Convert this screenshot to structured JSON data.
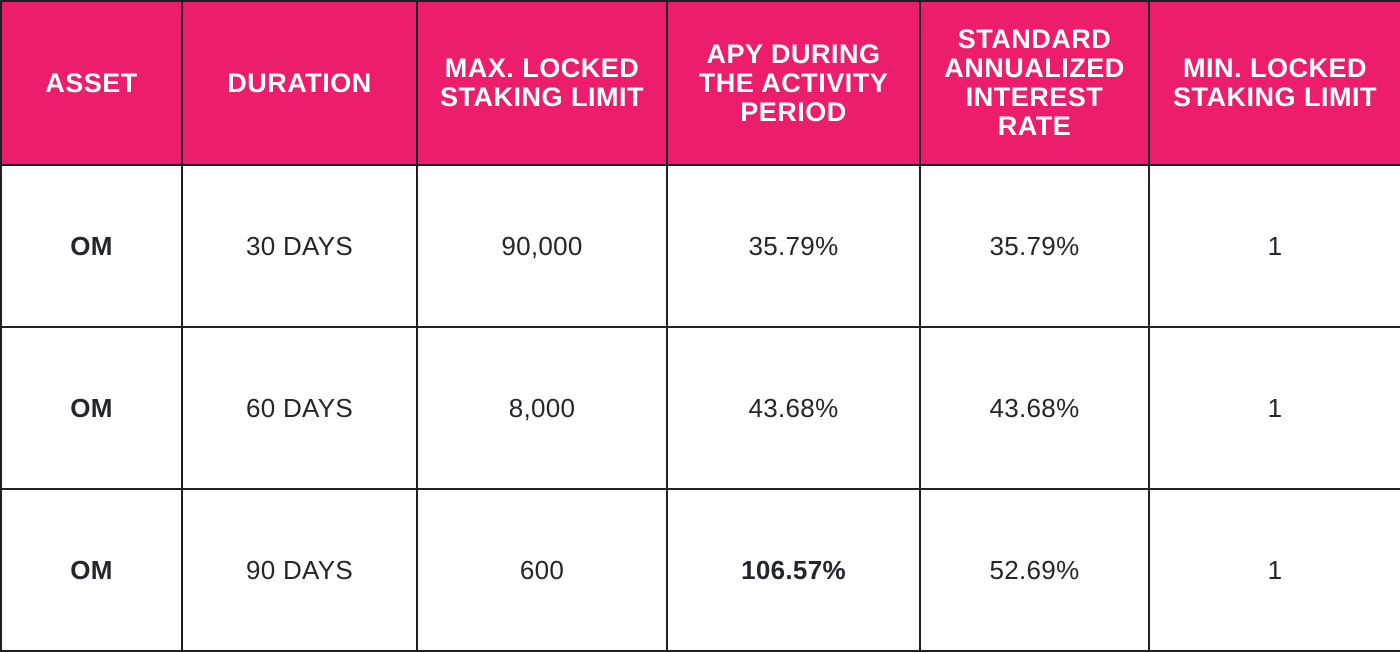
{
  "table": {
    "headers": [
      "ASSET",
      "DURATION",
      "MAX. LOCKED STAKING LIMIT",
      "APY DURING THE ACTIVITY PERIOD",
      "STANDARD ANNUALIZED INTEREST RATE",
      "MIN. LOCKED STAKING LIMIT"
    ],
    "rows": [
      {
        "asset": "OM",
        "duration": "30 DAYS",
        "max_limit": "90,000",
        "apy": "35.79%",
        "standard_rate": "35.79%",
        "min_limit": "1"
      },
      {
        "asset": "OM",
        "duration": "60 DAYS",
        "max_limit": "8,000",
        "apy": "43.68%",
        "standard_rate": "43.68%",
        "min_limit": "1"
      },
      {
        "asset": "OM",
        "duration": "90 DAYS",
        "max_limit": "600",
        "apy": "106.57%",
        "standard_rate": "52.69%",
        "min_limit": "1"
      }
    ],
    "colors": {
      "header_background": "#ec1e6c",
      "header_text": "#ffffff",
      "body_text": "#25262c",
      "border": "#1f1f24",
      "highlight_text": "#ec1e6c"
    }
  }
}
